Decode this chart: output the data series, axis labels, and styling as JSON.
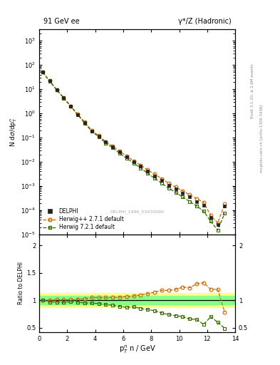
{
  "title_left": "91 GeV ee",
  "title_right": "γ*/Z (Hadronic)",
  "ylabel_main": "dσ/dp$_T^n$",
  "xlabel": "p$_T^n$ n / GeV",
  "ylabel_ratio": "Ratio to DELPHI",
  "watermark": "DELPHI_1996_S3430090",
  "right_label_top": "Rivet 3.1.10, ≥ 2.6M events",
  "right_label_bottom": "mcplots.cern.ch [arXiv:1306.3436]",
  "ylim_main": [
    1e-05,
    3000.0
  ],
  "ylim_ratio": [
    0.42,
    2.2
  ],
  "xlim": [
    0,
    14
  ],
  "delphi_x": [
    0.25,
    0.75,
    1.25,
    1.75,
    2.25,
    2.75,
    3.25,
    3.75,
    4.25,
    4.75,
    5.25,
    5.75,
    6.25,
    6.75,
    7.25,
    7.75,
    8.25,
    8.75,
    9.25,
    9.75,
    10.25,
    10.75,
    11.25,
    11.75,
    12.25,
    12.75,
    13.25
  ],
  "delphi_y": [
    50,
    22,
    9.5,
    4.5,
    2.0,
    0.9,
    0.42,
    0.19,
    0.115,
    0.065,
    0.042,
    0.025,
    0.016,
    0.01,
    0.0065,
    0.004,
    0.0026,
    0.0017,
    0.0011,
    0.00075,
    0.0005,
    0.00035,
    0.00023,
    0.00016,
    5e-05,
    2.5e-05,
    0.00015
  ],
  "delphi_yerr": [
    2,
    1,
    0.4,
    0.2,
    0.1,
    0.05,
    0.02,
    0.01,
    0.005,
    0.003,
    0.002,
    0.001,
    0.001,
    0.0005,
    0.0003,
    0.0002,
    0.00015,
    0.0001,
    7e-05,
    5e-05,
    3e-05,
    2.5e-05,
    1.5e-05,
    1e-05,
    5e-06,
    3e-06,
    2e-05
  ],
  "herwig_pp_x": [
    0.25,
    0.75,
    1.25,
    1.75,
    2.25,
    2.75,
    3.25,
    3.75,
    4.25,
    4.75,
    5.25,
    5.75,
    6.25,
    6.75,
    7.25,
    7.75,
    8.25,
    8.75,
    9.25,
    9.75,
    10.25,
    10.75,
    11.25,
    11.75,
    12.25,
    12.75,
    13.25
  ],
  "herwig_pp_y": [
    50,
    22,
    9.5,
    4.5,
    2.0,
    0.92,
    0.43,
    0.2,
    0.12,
    0.068,
    0.044,
    0.027,
    0.017,
    0.011,
    0.0072,
    0.0046,
    0.0031,
    0.002,
    0.0013,
    0.0009,
    0.00062,
    0.00043,
    0.0003,
    0.00021,
    6e-05,
    3e-05,
    0.00018
  ],
  "herwig_pp_ratio": [
    1.0,
    1.0,
    1.01,
    1.01,
    1.01,
    1.02,
    1.03,
    1.05,
    1.05,
    1.05,
    1.05,
    1.06,
    1.07,
    1.08,
    1.1,
    1.12,
    1.15,
    1.18,
    1.18,
    1.2,
    1.24,
    1.23,
    1.3,
    1.32,
    1.2,
    1.2,
    0.78
  ],
  "herwig7_x": [
    0.25,
    0.75,
    1.25,
    1.75,
    2.25,
    2.75,
    3.25,
    3.75,
    4.25,
    4.75,
    5.25,
    5.75,
    6.25,
    6.75,
    7.25,
    7.75,
    8.25,
    8.75,
    9.25,
    9.75,
    10.25,
    10.75,
    11.25,
    11.75,
    12.25,
    12.75,
    13.25
  ],
  "herwig7_y": [
    50,
    21,
    9.2,
    4.3,
    1.95,
    0.87,
    0.4,
    0.18,
    0.108,
    0.06,
    0.038,
    0.022,
    0.014,
    0.0088,
    0.0055,
    0.0033,
    0.0021,
    0.0013,
    0.00082,
    0.00054,
    0.00035,
    0.00023,
    0.00015,
    9e-05,
    3.5e-05,
    1.5e-05,
    7.5e-05
  ],
  "herwig7_ratio": [
    1.0,
    0.97,
    0.97,
    0.96,
    0.975,
    0.97,
    0.95,
    0.95,
    0.94,
    0.92,
    0.91,
    0.89,
    0.87,
    0.88,
    0.85,
    0.83,
    0.81,
    0.77,
    0.74,
    0.72,
    0.7,
    0.66,
    0.65,
    0.56,
    0.7,
    0.6,
    0.49
  ],
  "band_yellow_ylo": 0.87,
  "band_yellow_yhi": 1.13,
  "band_green_ylo": 0.92,
  "band_green_yhi": 1.08,
  "color_delphi": "#222222",
  "color_herwig_pp": "#cc6600",
  "color_herwig7": "#336600",
  "color_yellow_band": "#ffff88",
  "color_green_band": "#88ff88"
}
